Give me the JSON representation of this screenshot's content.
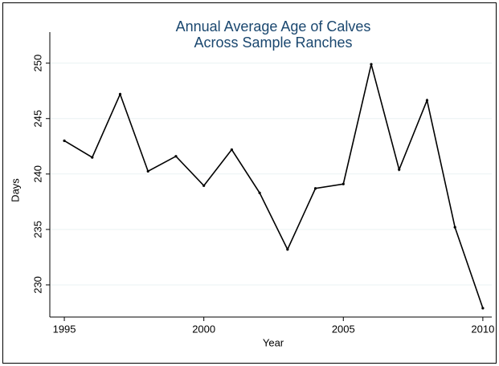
{
  "chart_data": {
    "type": "line",
    "title": [
      "Annual Average Age of Calves",
      "Across Sample Ranches"
    ],
    "x_label": "Year",
    "y_label": "Days",
    "x": [
      1995,
      1996,
      1997,
      1998,
      1999,
      2000,
      2001,
      2002,
      2003,
      2004,
      2005,
      2006,
      2007,
      2008,
      2009,
      2010
    ],
    "series": [
      {
        "color": "#000000",
        "values": [
          243.0,
          241.5,
          247.2,
          240.25,
          241.6,
          238.95,
          242.2,
          238.3,
          233.2,
          238.7,
          239.1,
          249.9,
          240.4,
          246.65,
          235.2,
          227.9
        ]
      }
    ],
    "xlim": [
      1994.48,
      2010.32
    ],
    "ylim": [
      227.1,
      252.8
    ],
    "xticks": [
      1995,
      2000,
      2005,
      2010
    ],
    "yticks": [
      230,
      235,
      240,
      245,
      250
    ],
    "grid": true
  }
}
